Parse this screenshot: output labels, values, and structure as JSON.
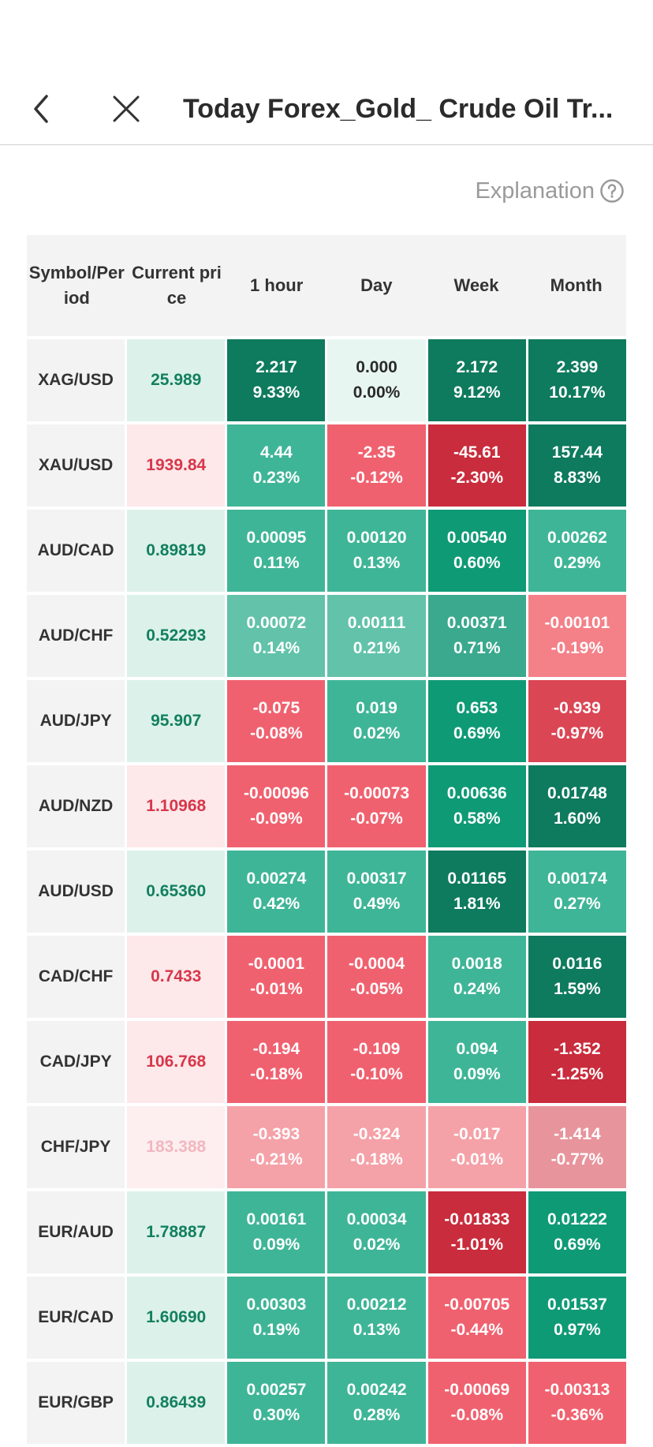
{
  "header": {
    "title": "Today Forex_Gold_ Crude Oil Tr..."
  },
  "explanation": {
    "label": "Explanation"
  },
  "table": {
    "headers": [
      "Symbol/Period",
      "Current price",
      "1 hour",
      "Day",
      "Week",
      "Month"
    ],
    "rows": [
      {
        "symbol": "XAG/USD",
        "price": "25.989",
        "price_dir": "up",
        "cells": [
          [
            "2.217",
            "9.33%",
            "#0e7a5e"
          ],
          [
            "0.000",
            "0.00%",
            "#e8f6f2"
          ],
          [
            "2.172",
            "9.12%",
            "#0e7a5e"
          ],
          [
            "2.399",
            "10.17%",
            "#0e7a5e"
          ]
        ]
      },
      {
        "symbol": "XAU/USD",
        "price": "1939.84",
        "price_dir": "down",
        "cells": [
          [
            "4.44",
            "0.23%",
            "#3fb597"
          ],
          [
            "-2.35",
            "-0.12%",
            "#f0616f"
          ],
          [
            "-45.61",
            "-2.30%",
            "#c92c3c"
          ],
          [
            "157.44",
            "8.83%",
            "#0e7a5e"
          ]
        ]
      },
      {
        "symbol": "AUD/CAD",
        "price": "0.89819",
        "price_dir": "up",
        "cells": [
          [
            "0.00095",
            "0.11%",
            "#3fb597"
          ],
          [
            "0.00120",
            "0.13%",
            "#3fb597"
          ],
          [
            "0.00540",
            "0.60%",
            "#0f9a76"
          ],
          [
            "0.00262",
            "0.29%",
            "#3fb597"
          ]
        ]
      },
      {
        "symbol": "AUD/CHF",
        "price": "0.52293",
        "price_dir": "up",
        "cells": [
          [
            "0.00072",
            "0.14%",
            "#62c2aa"
          ],
          [
            "0.00111",
            "0.21%",
            "#62c2aa"
          ],
          [
            "0.00371",
            "0.71%",
            "#3aa98e"
          ],
          [
            "-0.00101",
            "-0.19%",
            "#f48088"
          ]
        ]
      },
      {
        "symbol": "AUD/JPY",
        "price": "95.907",
        "price_dir": "up",
        "cells": [
          [
            "-0.075",
            "-0.08%",
            "#f0616f"
          ],
          [
            "0.019",
            "0.02%",
            "#3fb597"
          ],
          [
            "0.653",
            "0.69%",
            "#0f9a76"
          ],
          [
            "-0.939",
            "-0.97%",
            "#db4654"
          ]
        ]
      },
      {
        "symbol": "AUD/NZD",
        "price": "1.10968",
        "price_dir": "down",
        "cells": [
          [
            "-0.00096",
            "-0.09%",
            "#f0616f"
          ],
          [
            "-0.00073",
            "-0.07%",
            "#f0616f"
          ],
          [
            "0.00636",
            "0.58%",
            "#0f9a76"
          ],
          [
            "0.01748",
            "1.60%",
            "#0e7a5e"
          ]
        ]
      },
      {
        "symbol": "AUD/USD",
        "price": "0.65360",
        "price_dir": "up",
        "cells": [
          [
            "0.00274",
            "0.42%",
            "#3fb597"
          ],
          [
            "0.00317",
            "0.49%",
            "#3fb597"
          ],
          [
            "0.01165",
            "1.81%",
            "#0e7a5e"
          ],
          [
            "0.00174",
            "0.27%",
            "#3fb597"
          ]
        ]
      },
      {
        "symbol": "CAD/CHF",
        "price": "0.7433",
        "price_dir": "down",
        "cells": [
          [
            "-0.0001",
            "-0.01%",
            "#f0616f"
          ],
          [
            "-0.0004",
            "-0.05%",
            "#f0616f"
          ],
          [
            "0.0018",
            "0.24%",
            "#3fb597"
          ],
          [
            "0.0116",
            "1.59%",
            "#0e7a5e"
          ]
        ]
      },
      {
        "symbol": "CAD/JPY",
        "price": "106.768",
        "price_dir": "down",
        "cells": [
          [
            "-0.194",
            "-0.18%",
            "#f0616f"
          ],
          [
            "-0.109",
            "-0.10%",
            "#f0616f"
          ],
          [
            "0.094",
            "0.09%",
            "#3fb597"
          ],
          [
            "-1.352",
            "-1.25%",
            "#c92c3c"
          ]
        ]
      },
      {
        "symbol": "CHF/JPY",
        "price": "183.388",
        "price_dir": "faded",
        "cells": [
          [
            "-0.393",
            "-0.21%",
            "#f5a1a8"
          ],
          [
            "-0.324",
            "-0.18%",
            "#f5a1a8"
          ],
          [
            "-0.017",
            "-0.01%",
            "#f5a1a8"
          ],
          [
            "-1.414",
            "-0.77%",
            "#e8949c"
          ]
        ]
      },
      {
        "symbol": "EUR/AUD",
        "price": "1.78887",
        "price_dir": "up",
        "cells": [
          [
            "0.00161",
            "0.09%",
            "#3fb597"
          ],
          [
            "0.00034",
            "0.02%",
            "#3fb597"
          ],
          [
            "-0.01833",
            "-1.01%",
            "#c92c3c"
          ],
          [
            "0.01222",
            "0.69%",
            "#0f9a76"
          ]
        ]
      },
      {
        "symbol": "EUR/CAD",
        "price": "1.60690",
        "price_dir": "up",
        "cells": [
          [
            "0.00303",
            "0.19%",
            "#3fb597"
          ],
          [
            "0.00212",
            "0.13%",
            "#3fb597"
          ],
          [
            "-0.00705",
            "-0.44%",
            "#f0616f"
          ],
          [
            "0.01537",
            "0.97%",
            "#0f9a76"
          ]
        ]
      },
      {
        "symbol": "EUR/GBP",
        "price": "0.86439",
        "price_dir": "up",
        "cells": [
          [
            "0.00257",
            "0.30%",
            "#3fb597"
          ],
          [
            "0.00242",
            "0.28%",
            "#3fb597"
          ],
          [
            "-0.00069",
            "-0.08%",
            "#f0616f"
          ],
          [
            "-0.00313",
            "-0.36%",
            "#f0616f"
          ]
        ]
      }
    ]
  },
  "colors": {
    "price_up_bg": "#dcf1ea",
    "price_up_text": "#12805e",
    "price_down_bg": "#fde8ea",
    "price_down_text": "#d7374a",
    "price_faded_bg": "#fdeef0",
    "price_faded_text": "#f2b7bf"
  }
}
